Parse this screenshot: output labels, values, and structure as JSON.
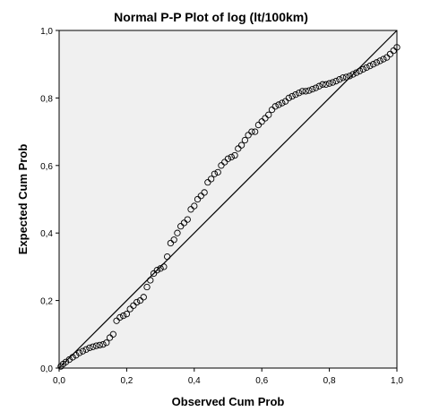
{
  "chart_data": {
    "type": "scatter",
    "title": "Normal P-P Plot of log (lt/100km)",
    "xlabel": "Observed Cum Prob",
    "ylabel": "Expected Cum Prob",
    "xlim": [
      0,
      1
    ],
    "ylim": [
      0,
      1
    ],
    "x_ticks": [
      "0,0",
      "0,2",
      "0,4",
      "0,6",
      "0,8",
      "1,0"
    ],
    "y_ticks": [
      "0,0",
      "0,2",
      "0,4",
      "0,6",
      "0,8",
      "1,0"
    ],
    "grid": false,
    "reference_line": [
      [
        0,
        0
      ],
      [
        1,
        1
      ]
    ],
    "colors": {
      "plot_background": "#f0f0f0",
      "marker": "#000000",
      "line": "#000000"
    },
    "points": [
      [
        0.005,
        0.005
      ],
      [
        0.012,
        0.012
      ],
      [
        0.02,
        0.018
      ],
      [
        0.03,
        0.025
      ],
      [
        0.04,
        0.032
      ],
      [
        0.05,
        0.038
      ],
      [
        0.06,
        0.045
      ],
      [
        0.07,
        0.05
      ],
      [
        0.08,
        0.055
      ],
      [
        0.09,
        0.06
      ],
      [
        0.1,
        0.063
      ],
      [
        0.11,
        0.066
      ],
      [
        0.12,
        0.068
      ],
      [
        0.13,
        0.07
      ],
      [
        0.14,
        0.075
      ],
      [
        0.15,
        0.09
      ],
      [
        0.16,
        0.1
      ],
      [
        0.17,
        0.14
      ],
      [
        0.18,
        0.15
      ],
      [
        0.19,
        0.155
      ],
      [
        0.2,
        0.16
      ],
      [
        0.21,
        0.175
      ],
      [
        0.22,
        0.185
      ],
      [
        0.23,
        0.195
      ],
      [
        0.24,
        0.2
      ],
      [
        0.25,
        0.21
      ],
      [
        0.26,
        0.24
      ],
      [
        0.27,
        0.26
      ],
      [
        0.28,
        0.28
      ],
      [
        0.29,
        0.29
      ],
      [
        0.3,
        0.295
      ],
      [
        0.31,
        0.3
      ],
      [
        0.32,
        0.33
      ],
      [
        0.33,
        0.37
      ],
      [
        0.34,
        0.38
      ],
      [
        0.35,
        0.4
      ],
      [
        0.36,
        0.42
      ],
      [
        0.37,
        0.43
      ],
      [
        0.38,
        0.44
      ],
      [
        0.39,
        0.47
      ],
      [
        0.4,
        0.48
      ],
      [
        0.41,
        0.5
      ],
      [
        0.42,
        0.51
      ],
      [
        0.43,
        0.52
      ],
      [
        0.44,
        0.55
      ],
      [
        0.45,
        0.56
      ],
      [
        0.46,
        0.575
      ],
      [
        0.47,
        0.58
      ],
      [
        0.48,
        0.6
      ],
      [
        0.49,
        0.61
      ],
      [
        0.5,
        0.62
      ],
      [
        0.51,
        0.625
      ],
      [
        0.52,
        0.63
      ],
      [
        0.53,
        0.65
      ],
      [
        0.54,
        0.66
      ],
      [
        0.55,
        0.675
      ],
      [
        0.56,
        0.69
      ],
      [
        0.57,
        0.7
      ],
      [
        0.58,
        0.7
      ],
      [
        0.59,
        0.72
      ],
      [
        0.6,
        0.73
      ],
      [
        0.61,
        0.74
      ],
      [
        0.62,
        0.75
      ],
      [
        0.63,
        0.765
      ],
      [
        0.64,
        0.775
      ],
      [
        0.65,
        0.78
      ],
      [
        0.66,
        0.785
      ],
      [
        0.67,
        0.79
      ],
      [
        0.68,
        0.8
      ],
      [
        0.69,
        0.805
      ],
      [
        0.7,
        0.81
      ],
      [
        0.71,
        0.815
      ],
      [
        0.72,
        0.82
      ],
      [
        0.73,
        0.82
      ],
      [
        0.74,
        0.822
      ],
      [
        0.75,
        0.826
      ],
      [
        0.76,
        0.83
      ],
      [
        0.77,
        0.835
      ],
      [
        0.78,
        0.84
      ],
      [
        0.79,
        0.84
      ],
      [
        0.8,
        0.843
      ],
      [
        0.81,
        0.846
      ],
      [
        0.82,
        0.85
      ],
      [
        0.83,
        0.855
      ],
      [
        0.84,
        0.86
      ],
      [
        0.85,
        0.862
      ],
      [
        0.86,
        0.865
      ],
      [
        0.87,
        0.87
      ],
      [
        0.88,
        0.875
      ],
      [
        0.89,
        0.88
      ],
      [
        0.9,
        0.885
      ],
      [
        0.91,
        0.89
      ],
      [
        0.92,
        0.895
      ],
      [
        0.93,
        0.9
      ],
      [
        0.94,
        0.905
      ],
      [
        0.95,
        0.91
      ],
      [
        0.96,
        0.915
      ],
      [
        0.97,
        0.92
      ],
      [
        0.98,
        0.93
      ],
      [
        0.99,
        0.94
      ],
      [
        1.0,
        0.95
      ]
    ]
  }
}
